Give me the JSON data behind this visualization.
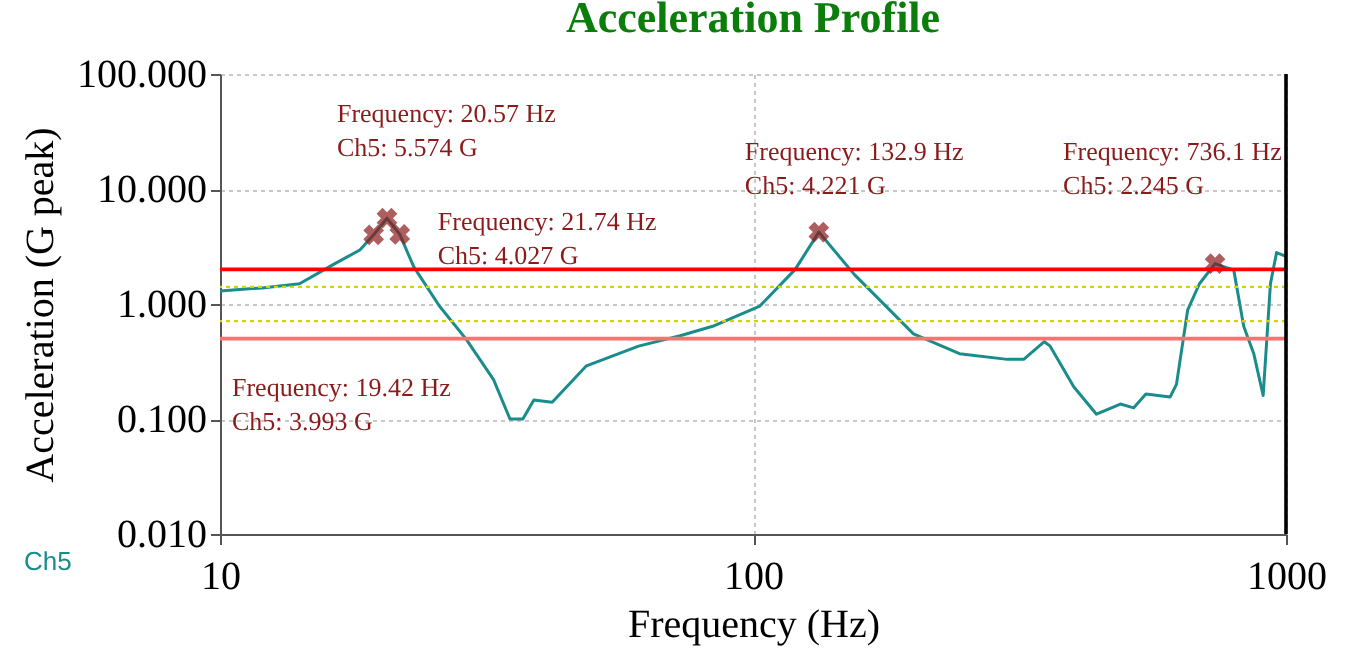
{
  "chart_data": {
    "type": "line",
    "title": "Acceleration Profile",
    "xlabel": "Frequency (Hz)",
    "ylabel": "Acceleration (G peak)",
    "log": "xy",
    "grid": true,
    "xlim": [
      10,
      1000
    ],
    "xticks": [
      10,
      100,
      1000
    ],
    "ylim": [
      0.01,
      100
    ],
    "yticks": [
      {
        "value": 0.01,
        "label": "0.010"
      },
      {
        "value": 0.1,
        "label": "0.100"
      },
      {
        "value": 1,
        "label": "1.000"
      },
      {
        "value": 10,
        "label": "10.000"
      },
      {
        "value": 100,
        "label": "100.000"
      }
    ],
    "series": [
      {
        "color": "#1a8c8c",
        "x": [
          10,
          12,
          14.1,
          16.3,
          18.3,
          19.42,
          20.57,
          21.74,
          23.1,
          25.8,
          29,
          32.6,
          35,
          37,
          38.8,
          42,
          48.7,
          61,
          73,
          84,
          103,
          120,
          132.9,
          155,
          173,
          200,
          244,
          300,
          322,
          352,
          361,
          400,
          441,
          489,
          518,
          546,
          606,
          623,
          654,
          688,
          736.1,
          798,
          833,
          870,
          906,
          935,
          960,
          1000
        ],
        "values": [
          1.3,
          1.38,
          1.5,
          2.2,
          2.95,
          3.993,
          5.574,
          4.027,
          2.1,
          0.96,
          0.49,
          0.22,
          0.1,
          0.1,
          0.146,
          0.14,
          0.29,
          0.43,
          0.53,
          0.64,
          0.96,
          2.0,
          4.221,
          1.8,
          1.08,
          0.55,
          0.37,
          0.33,
          0.33,
          0.47,
          0.43,
          0.19,
          0.11,
          0.135,
          0.125,
          0.165,
          0.155,
          0.2,
          0.89,
          1.5,
          2.245,
          1.97,
          0.64,
          0.37,
          0.16,
          1.5,
          2.8,
          2.6
        ]
      },
      {
        "type": "scatter",
        "marker": "cross",
        "color": "#8b1a1a",
        "x": [
          19.42,
          20.57,
          21.74,
          132.9,
          736.1
        ],
        "values": [
          3.993,
          5.574,
          4.027,
          4.221,
          2.245
        ]
      }
    ],
    "ref_lines": [
      {
        "axis": "y",
        "value": 2,
        "color": "#ff0000"
      },
      {
        "axis": "y",
        "value": 0.5,
        "color": "#ff7070"
      },
      {
        "axis": "y",
        "value": 1.41,
        "color": "#d4d400",
        "line_style": "dotted"
      },
      {
        "axis": "y",
        "value": 0.71,
        "color": "#d4d400",
        "line_style": "dotted"
      },
      {
        "axis": "x",
        "value": 1000,
        "color": "#000000"
      }
    ],
    "annotations": [
      "Frequency: 19.42 Hz\nCh5: 3.993 G",
      {
        "text": "Frequency: 20.57 Hz\nCh5: 5.574 G",
        "x": 20.57,
        "y": 5.574
      },
      {
        "text": "Frequency: 21.74 Hz\nCh5: 4.027 G",
        "x": 21.74,
        "y": 4.027
      },
      {
        "text": "Frequency: 132.9 Hz\nCh5: 4.221 G",
        "x": 132.9,
        "y": 4.221
      },
      {
        "text": "Frequency: 736.1 Hz\nCh5: 2.245 G",
        "x": 736.1,
        "y": 2.245
      },
      "Ch5"
    ]
  }
}
